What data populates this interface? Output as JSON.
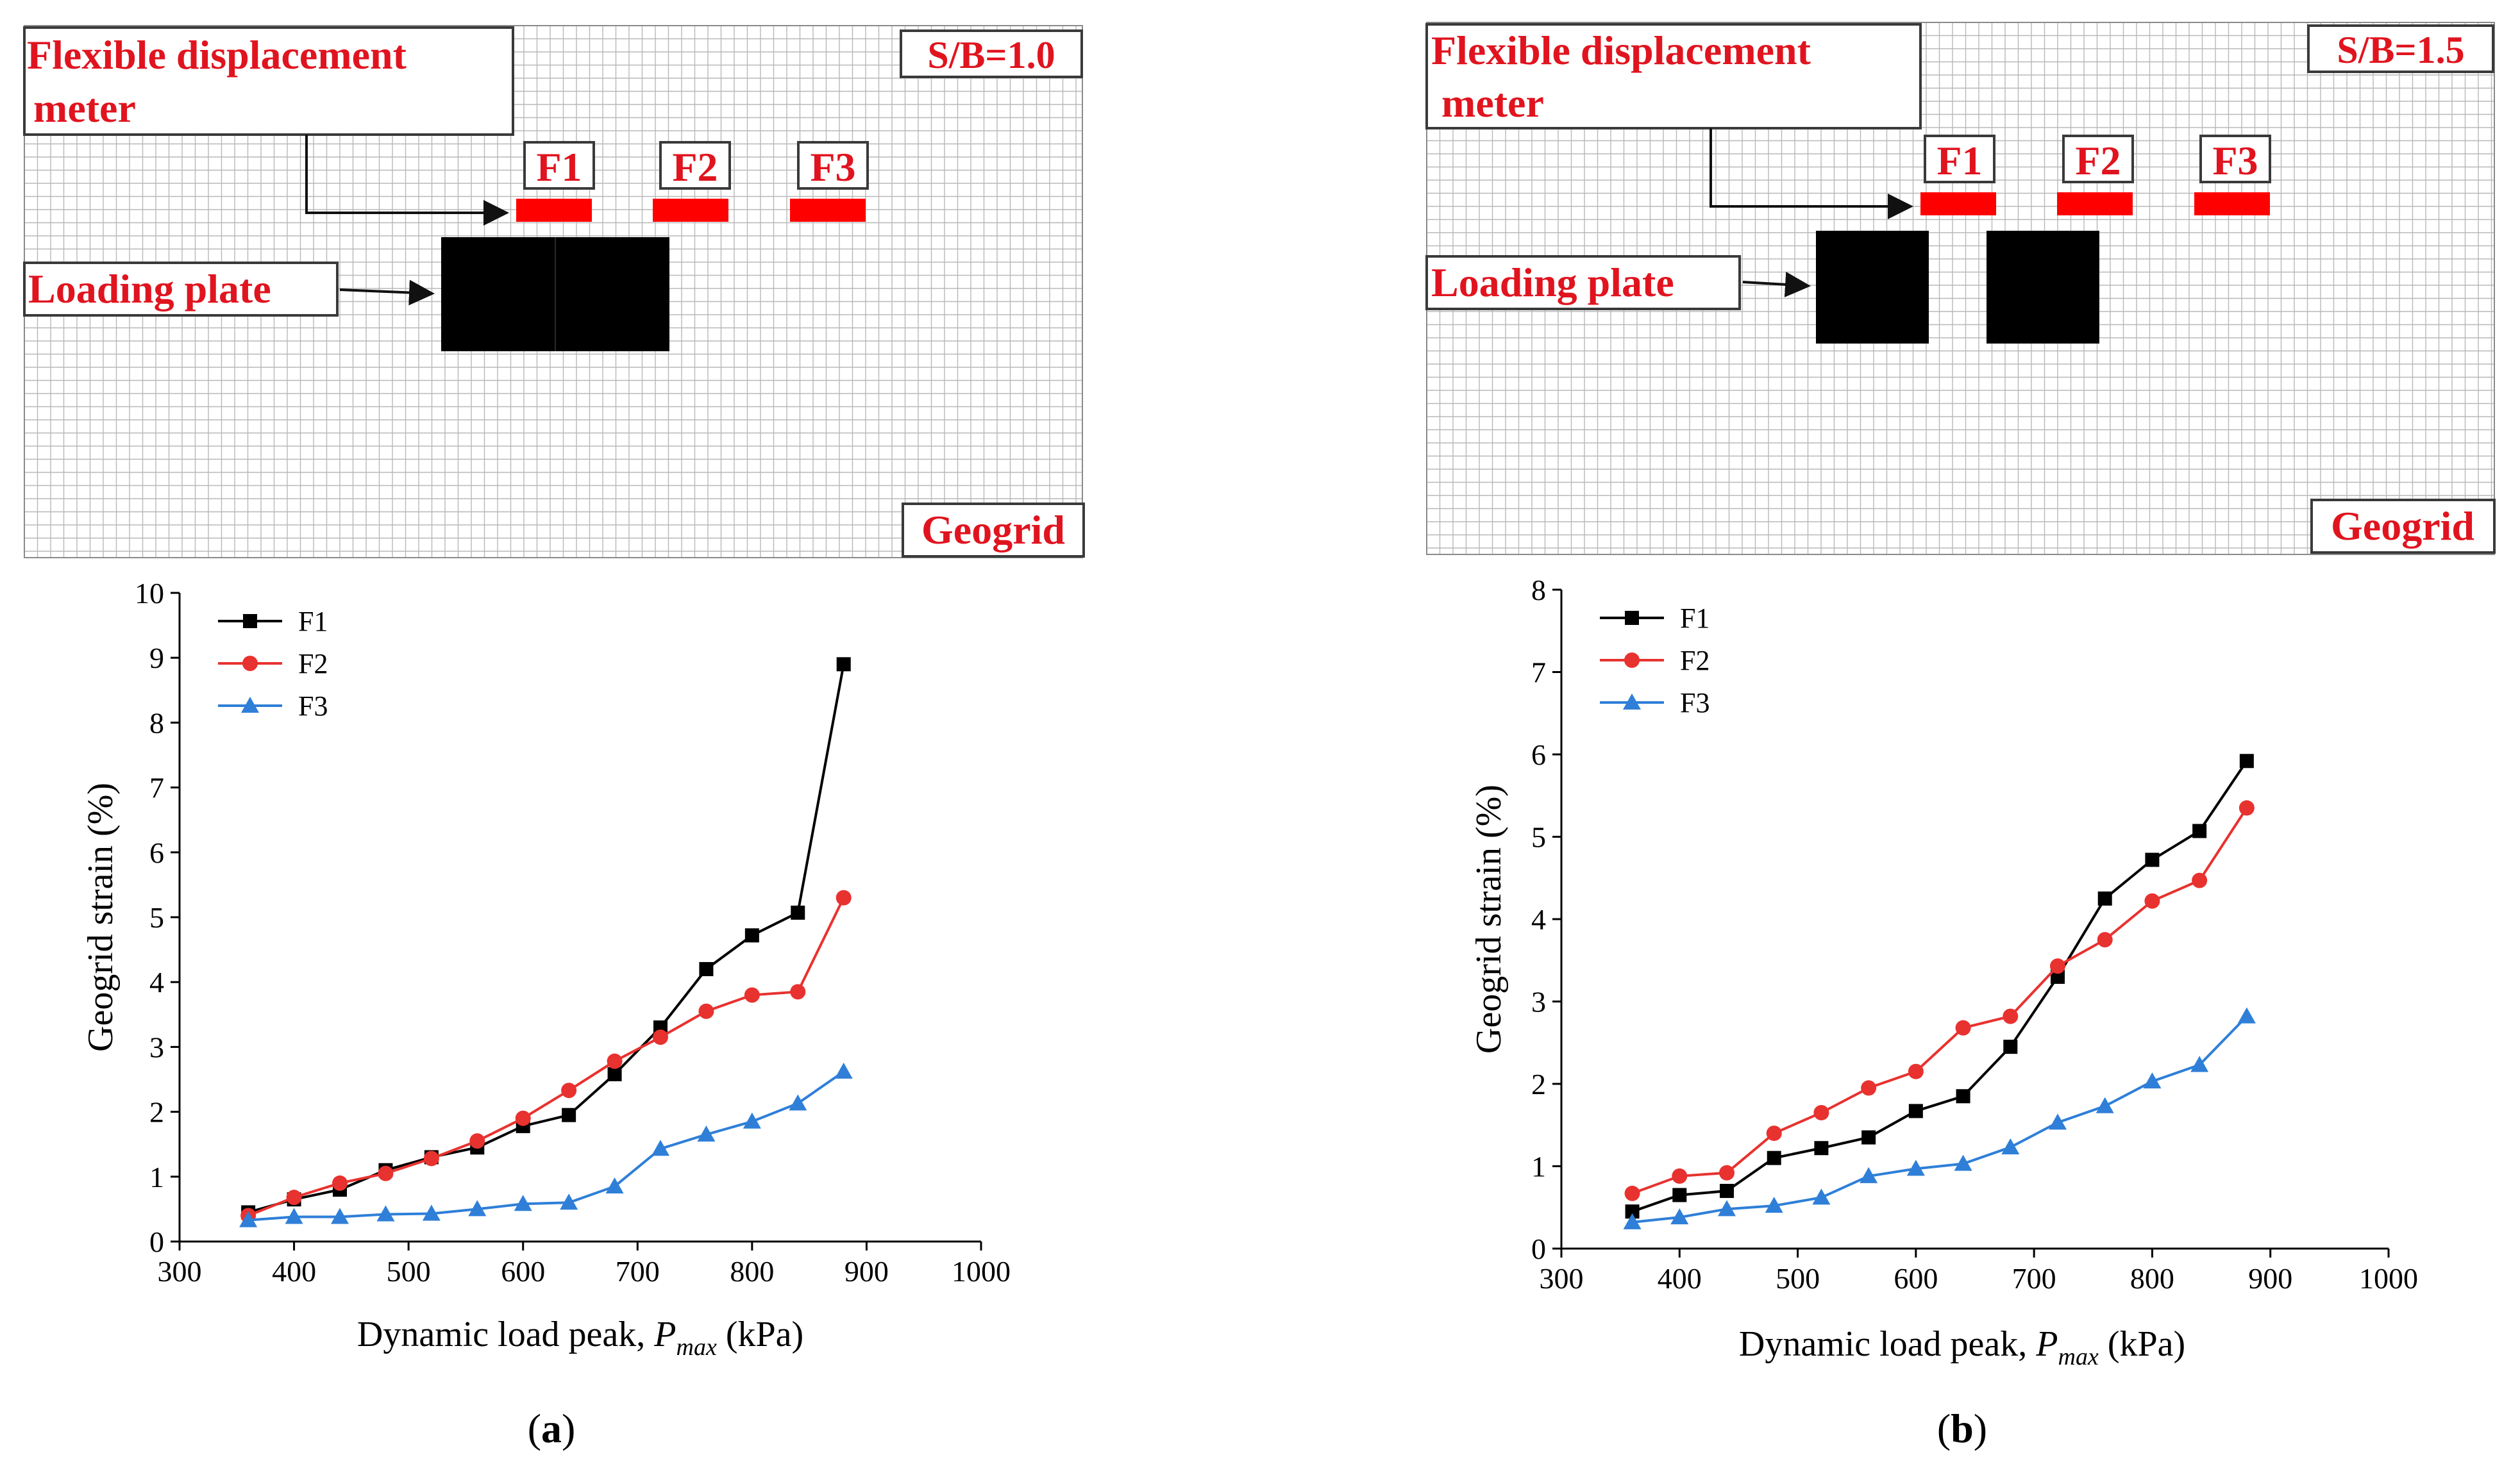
{
  "panels": [
    {
      "label": "(a)",
      "label_open": "(",
      "label_letter": "a",
      "label_close": ")",
      "diagram": {
        "ratio_label": "S/B=1.0",
        "meter_label_line1": "Flexible displacement",
        "meter_label_line2": "meter",
        "loading_label": "Loading plate",
        "geogrid_label": "Geogrid",
        "sensors": [
          "F1",
          "F2",
          "F3"
        ],
        "plate_layout": "adjacent"
      },
      "chart_data": {
        "type": "line",
        "xlabel": "Dynamic load peak, P_max (kPa)",
        "ylabel": "Geogrid strain (%)",
        "xlim": [
          300,
          1000
        ],
        "ylim": [
          0,
          10
        ],
        "x_ticks": [
          300,
          400,
          500,
          600,
          700,
          800,
          900,
          1000
        ],
        "y_ticks": [
          0,
          1,
          2,
          3,
          4,
          5,
          6,
          7,
          8,
          9,
          10
        ],
        "legend_position": "top-left",
        "x": [
          360,
          400,
          440,
          480,
          520,
          560,
          600,
          640,
          680,
          720,
          760,
          800,
          840,
          880
        ],
        "series": [
          {
            "name": "F1",
            "color": "#000000",
            "marker": "square",
            "values": [
              0.45,
              0.65,
              0.8,
              1.1,
              1.3,
              1.45,
              1.78,
              1.95,
              2.58,
              3.3,
              4.2,
              4.72,
              5.07,
              8.9
            ]
          },
          {
            "name": "F2",
            "color": "#e8322f",
            "marker": "circle",
            "values": [
              0.4,
              0.68,
              0.9,
              1.05,
              1.28,
              1.55,
              1.9,
              2.33,
              2.78,
              3.15,
              3.55,
              3.8,
              3.85,
              5.3
            ]
          },
          {
            "name": "F3",
            "color": "#2f7fd8",
            "marker": "triangle",
            "values": [
              0.33,
              0.38,
              0.38,
              0.42,
              0.43,
              0.5,
              0.58,
              0.6,
              0.85,
              1.43,
              1.65,
              1.85,
              2.13,
              2.62
            ]
          }
        ]
      }
    },
    {
      "label": "(b)",
      "label_open": "(",
      "label_letter": "b",
      "label_close": ")",
      "diagram": {
        "ratio_label": "S/B=1.5",
        "meter_label_line1": "Flexible displacement",
        "meter_label_line2": "meter",
        "loading_label": "Loading plate",
        "geogrid_label": "Geogrid",
        "sensors": [
          "F1",
          "F2",
          "F3"
        ],
        "plate_layout": "separated"
      },
      "chart_data": {
        "type": "line",
        "xlabel": "Dynamic load peak, P_max (kPa)",
        "ylabel": "Geogrid strain (%)",
        "xlim": [
          300,
          1000
        ],
        "ylim": [
          0,
          8
        ],
        "x_ticks": [
          300,
          400,
          500,
          600,
          700,
          800,
          900,
          1000
        ],
        "y_ticks": [
          0,
          1,
          2,
          3,
          4,
          5,
          6,
          7,
          8
        ],
        "legend_position": "top-left",
        "x": [
          360,
          400,
          440,
          480,
          520,
          560,
          600,
          640,
          680,
          720,
          760,
          800,
          840,
          880
        ],
        "series": [
          {
            "name": "F1",
            "color": "#000000",
            "marker": "square",
            "values": [
              0.45,
              0.65,
              0.7,
              1.1,
              1.22,
              1.35,
              1.67,
              1.85,
              2.45,
              3.3,
              4.25,
              4.72,
              5.07,
              5.92
            ]
          },
          {
            "name": "F2",
            "color": "#e8322f",
            "marker": "circle",
            "values": [
              0.67,
              0.88,
              0.92,
              1.4,
              1.65,
              1.95,
              2.15,
              2.68,
              2.82,
              3.43,
              3.75,
              4.22,
              4.47,
              5.35
            ]
          },
          {
            "name": "F3",
            "color": "#2f7fd8",
            "marker": "triangle",
            "values": [
              0.32,
              0.38,
              0.48,
              0.52,
              0.62,
              0.88,
              0.97,
              1.03,
              1.23,
              1.53,
              1.73,
              2.03,
              2.23,
              2.82
            ]
          }
        ]
      }
    }
  ]
}
